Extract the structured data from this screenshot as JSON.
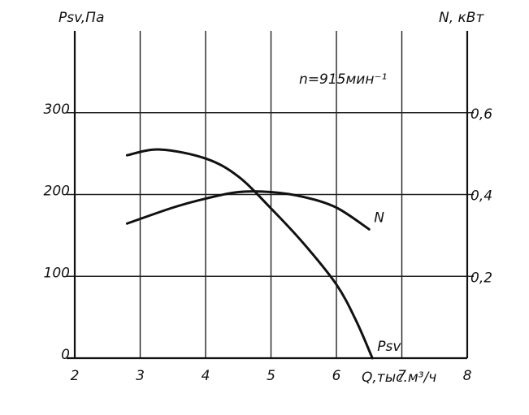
{
  "chart_data": {
    "type": "line",
    "y_label": "Psv,Па",
    "y2_label": "N, кВт",
    "x_label": "Q,тыс.м³/ч",
    "annotation": "n=915мин⁻¹",
    "xlim": [
      2,
      8
    ],
    "xticks": [
      2,
      3,
      4,
      5,
      6,
      7,
      8
    ],
    "ylim": [
      0,
      400
    ],
    "yticks": [
      0,
      100,
      200,
      300
    ],
    "y2lim": [
      0,
      0.8
    ],
    "y2ticks": [
      {
        "value": 0.2,
        "label": "0,2"
      },
      {
        "value": 0.4,
        "label": "0,4"
      },
      {
        "value": 0.6,
        "label": "0,6"
      }
    ],
    "grid": true,
    "series": [
      {
        "name": "Psv",
        "color": "#111111",
        "x": [
          2.8,
          3.3,
          4.0,
          4.5,
          5.0,
          5.5,
          6.0,
          6.3,
          6.55
        ],
        "values": [
          248,
          255,
          244,
          222,
          183,
          140,
          90,
          46,
          0
        ]
      },
      {
        "name": "N",
        "color": "#111111",
        "axis": "y2",
        "x": [
          2.8,
          3.5,
          4.0,
          4.5,
          5.0,
          5.5,
          6.0,
          6.5
        ],
        "values": [
          0.329,
          0.368,
          0.39,
          0.406,
          0.406,
          0.394,
          0.368,
          0.315
        ]
      }
    ]
  }
}
